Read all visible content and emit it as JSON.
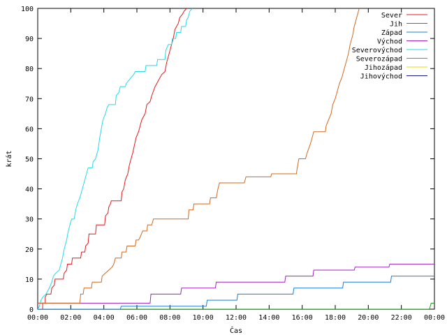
{
  "chart_data": {
    "type": "line",
    "xlabel": "Čas",
    "ylabel": "krát",
    "xlim": [
      0,
      24
    ],
    "ylim": [
      0,
      100
    ],
    "grid": false,
    "legend_position": "top-right",
    "x_ticks": [
      {
        "value": 0,
        "label": "00:00"
      },
      {
        "value": 2,
        "label": "02:00"
      },
      {
        "value": 4,
        "label": "04:00"
      },
      {
        "value": 6,
        "label": "06:00"
      },
      {
        "value": 8,
        "label": "08:00"
      },
      {
        "value": 10,
        "label": "10:00"
      },
      {
        "value": 12,
        "label": "12:00"
      },
      {
        "value": 14,
        "label": "14:00"
      },
      {
        "value": 16,
        "label": "16:00"
      },
      {
        "value": 18,
        "label": "18:00"
      },
      {
        "value": 20,
        "label": "20:00"
      },
      {
        "value": 22,
        "label": "22:00"
      },
      {
        "value": 24,
        "label": "00:00"
      }
    ],
    "y_ticks": [
      0,
      10,
      20,
      30,
      40,
      50,
      60,
      70,
      80,
      90,
      100
    ],
    "series": [
      {
        "name": "Sever",
        "color": "#e41a1c",
        "points": [
          [
            0.3,
            0
          ],
          [
            0.3,
            2
          ],
          [
            0.45,
            2
          ],
          [
            0.45,
            4
          ],
          [
            0.55,
            5
          ],
          [
            0.8,
            5
          ],
          [
            0.85,
            7
          ],
          [
            1.0,
            8
          ],
          [
            1.05,
            10
          ],
          [
            1.55,
            10
          ],
          [
            1.6,
            12
          ],
          [
            1.75,
            13
          ],
          [
            1.8,
            15
          ],
          [
            2.05,
            15
          ],
          [
            2.1,
            17
          ],
          [
            2.6,
            17
          ],
          [
            2.65,
            19
          ],
          [
            2.85,
            19
          ],
          [
            2.9,
            21
          ],
          [
            3.05,
            22
          ],
          [
            3.1,
            25
          ],
          [
            3.5,
            25
          ],
          [
            3.55,
            28
          ],
          [
            4.05,
            28
          ],
          [
            4.1,
            31
          ],
          [
            4.25,
            32
          ],
          [
            4.3,
            34
          ],
          [
            4.4,
            35
          ],
          [
            4.45,
            36
          ],
          [
            5.05,
            36
          ],
          [
            5.1,
            39
          ],
          [
            5.2,
            40
          ],
          [
            5.3,
            43
          ],
          [
            5.45,
            45
          ],
          [
            5.55,
            48
          ],
          [
            5.75,
            52
          ],
          [
            5.95,
            57
          ],
          [
            6.1,
            59
          ],
          [
            6.2,
            61
          ],
          [
            6.3,
            63
          ],
          [
            6.5,
            65
          ],
          [
            6.6,
            68
          ],
          [
            6.8,
            69
          ],
          [
            6.9,
            71
          ],
          [
            7.1,
            74
          ],
          [
            7.3,
            76
          ],
          [
            7.5,
            78
          ],
          [
            7.7,
            79
          ],
          [
            7.8,
            82
          ],
          [
            7.95,
            85
          ],
          [
            8.05,
            87
          ],
          [
            8.2,
            90
          ],
          [
            8.3,
            93
          ],
          [
            8.5,
            95
          ],
          [
            8.6,
            97
          ],
          [
            8.75,
            98
          ],
          [
            8.85,
            99
          ],
          [
            9.0,
            100
          ]
        ]
      },
      {
        "name": "Jih",
        "color": "#1a9e1a",
        "points": [
          [
            0,
            0
          ],
          [
            23.7,
            0
          ],
          [
            23.75,
            1
          ],
          [
            23.8,
            2
          ],
          [
            24,
            2
          ]
        ]
      },
      {
        "name": "Západ",
        "color": "#1a7fd4",
        "points": [
          [
            0,
            0
          ],
          [
            5.0,
            0
          ],
          [
            5.05,
            1
          ],
          [
            10.2,
            1
          ],
          [
            10.25,
            3
          ],
          [
            12.05,
            3
          ],
          [
            12.1,
            5
          ],
          [
            15.45,
            5
          ],
          [
            15.5,
            7
          ],
          [
            18.45,
            7
          ],
          [
            18.5,
            9
          ],
          [
            21.35,
            9
          ],
          [
            21.4,
            11
          ],
          [
            24,
            11
          ]
        ]
      },
      {
        "name": "Východ",
        "color": "#a020c0",
        "points": [
          [
            0,
            2
          ],
          [
            6.8,
            2
          ],
          [
            6.85,
            5
          ],
          [
            8.65,
            5
          ],
          [
            8.7,
            7
          ],
          [
            10.75,
            7
          ],
          [
            10.8,
            9
          ],
          [
            14.95,
            9
          ],
          [
            15.0,
            11
          ],
          [
            16.65,
            11
          ],
          [
            16.7,
            13
          ],
          [
            19.15,
            13
          ],
          [
            19.2,
            14
          ],
          [
            21.25,
            14
          ],
          [
            21.3,
            15
          ],
          [
            24,
            15
          ]
        ]
      },
      {
        "name": "Severovýchod",
        "color": "#26d9e6",
        "points": [
          [
            0,
            0
          ],
          [
            0.1,
            1
          ],
          [
            0.2,
            3
          ],
          [
            0.3,
            4
          ],
          [
            0.5,
            5
          ],
          [
            0.7,
            7
          ],
          [
            0.85,
            9
          ],
          [
            0.95,
            11
          ],
          [
            1.1,
            12
          ],
          [
            1.3,
            13
          ],
          [
            1.4,
            15
          ],
          [
            1.5,
            17
          ],
          [
            1.6,
            20
          ],
          [
            1.75,
            23
          ],
          [
            1.85,
            26
          ],
          [
            1.95,
            28
          ],
          [
            2.05,
            30
          ],
          [
            2.2,
            30
          ],
          [
            2.3,
            33
          ],
          [
            2.4,
            35
          ],
          [
            2.55,
            37
          ],
          [
            2.7,
            40
          ],
          [
            2.8,
            42
          ],
          [
            2.95,
            45
          ],
          [
            3.05,
            47
          ],
          [
            3.3,
            47
          ],
          [
            3.35,
            49
          ],
          [
            3.5,
            50
          ],
          [
            3.65,
            53
          ],
          [
            3.75,
            57
          ],
          [
            3.85,
            60
          ],
          [
            3.95,
            63
          ],
          [
            4.1,
            65
          ],
          [
            4.2,
            67
          ],
          [
            4.3,
            68
          ],
          [
            4.7,
            68
          ],
          [
            4.75,
            71
          ],
          [
            4.9,
            72
          ],
          [
            5.0,
            74
          ],
          [
            5.3,
            74
          ],
          [
            5.35,
            75
          ],
          [
            5.5,
            76
          ],
          [
            5.65,
            77
          ],
          [
            5.8,
            78
          ],
          [
            5.9,
            79
          ],
          [
            6.5,
            79
          ],
          [
            6.55,
            81
          ],
          [
            7.2,
            81
          ],
          [
            7.25,
            83
          ],
          [
            7.7,
            83
          ],
          [
            7.75,
            86
          ],
          [
            7.9,
            88
          ],
          [
            8.1,
            88
          ],
          [
            8.15,
            90
          ],
          [
            8.35,
            90
          ],
          [
            8.4,
            92
          ],
          [
            8.65,
            92
          ],
          [
            8.7,
            94
          ],
          [
            8.95,
            94
          ],
          [
            9.0,
            96
          ],
          [
            9.1,
            97
          ],
          [
            9.2,
            99
          ],
          [
            9.35,
            100
          ]
        ]
      },
      {
        "name": "Severozápad",
        "color": "#d2691e",
        "points": [
          [
            0,
            2
          ],
          [
            2.55,
            2
          ],
          [
            2.6,
            5
          ],
          [
            2.75,
            5
          ],
          [
            2.8,
            7
          ],
          [
            3.25,
            7
          ],
          [
            3.3,
            9
          ],
          [
            3.85,
            9
          ],
          [
            3.9,
            11
          ],
          [
            4.1,
            12
          ],
          [
            4.3,
            13
          ],
          [
            4.5,
            14
          ],
          [
            4.6,
            15
          ],
          [
            4.7,
            17
          ],
          [
            5.05,
            17
          ],
          [
            5.1,
            19
          ],
          [
            5.35,
            19
          ],
          [
            5.4,
            21
          ],
          [
            5.9,
            21
          ],
          [
            5.95,
            23
          ],
          [
            6.1,
            23
          ],
          [
            6.2,
            24
          ],
          [
            6.35,
            26
          ],
          [
            6.6,
            26
          ],
          [
            6.65,
            28
          ],
          [
            6.9,
            28
          ],
          [
            7.0,
            30
          ],
          [
            9.1,
            30
          ],
          [
            9.15,
            33
          ],
          [
            9.4,
            33
          ],
          [
            9.45,
            35
          ],
          [
            10.4,
            35
          ],
          [
            10.45,
            37
          ],
          [
            10.8,
            37
          ],
          [
            10.9,
            40
          ],
          [
            11.0,
            42
          ],
          [
            12.5,
            42
          ],
          [
            12.6,
            44
          ],
          [
            14.1,
            44
          ],
          [
            14.15,
            45
          ],
          [
            15.65,
            45
          ],
          [
            15.7,
            47
          ],
          [
            15.8,
            50
          ],
          [
            16.2,
            50
          ],
          [
            16.3,
            52
          ],
          [
            16.5,
            55
          ],
          [
            16.6,
            57
          ],
          [
            16.7,
            59
          ],
          [
            17.4,
            59
          ],
          [
            17.45,
            61
          ],
          [
            17.6,
            63
          ],
          [
            17.75,
            65
          ],
          [
            17.85,
            68
          ],
          [
            18.0,
            70
          ],
          [
            18.1,
            72
          ],
          [
            18.25,
            75
          ],
          [
            18.4,
            77
          ],
          [
            18.5,
            79
          ],
          [
            18.65,
            82
          ],
          [
            18.8,
            85
          ],
          [
            18.9,
            88
          ],
          [
            19.05,
            91
          ],
          [
            19.15,
            94
          ],
          [
            19.3,
            97
          ],
          [
            19.45,
            100
          ]
        ]
      },
      {
        "name": "Jihozápad",
        "color": "#e6e600",
        "points": []
      },
      {
        "name": "Jihovýchod",
        "color": "#1a1a8c",
        "points": []
      }
    ]
  }
}
